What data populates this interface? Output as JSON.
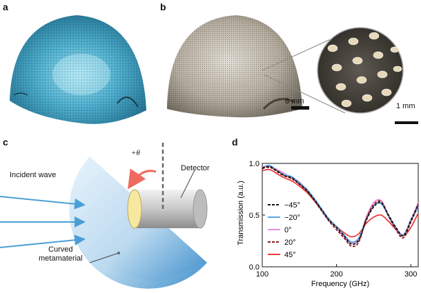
{
  "panels": {
    "a": {
      "letter": "a"
    },
    "b": {
      "letter": "b",
      "scale_main": "8 mm",
      "scale_inset": "1 mm"
    },
    "c": {
      "letter": "c",
      "theta_label": "+θ",
      "incident_label": "Incident wave",
      "detector_label": "Detector",
      "curved_label_line1": "Curved",
      "curved_label_line2": "metamaterial"
    },
    "d": {
      "letter": "d"
    }
  },
  "colors": {
    "dome_blue": "#3b8fb0",
    "wave_blue": "#4a9fd6",
    "arc_red": "#ee6a5e"
  },
  "chart_data": {
    "type": "line",
    "xlabel": "Frequency (GHz)",
    "ylabel": "Transmission (a.u.)",
    "xlim": [
      100,
      310
    ],
    "ylim": [
      0.0,
      1.0
    ],
    "xticks": [
      100,
      200,
      300
    ],
    "xtick_labels": [
      "100",
      "200",
      "300"
    ],
    "yticks": [
      0.0,
      0.5,
      1.0
    ],
    "ytick_labels": [
      "0.0",
      "0.5",
      "1.0"
    ],
    "legend_placement": "left",
    "x": [
      100,
      110,
      120,
      130,
      140,
      150,
      160,
      170,
      180,
      190,
      200,
      210,
      220,
      230,
      240,
      250,
      260,
      270,
      280,
      290,
      300,
      310
    ],
    "series": [
      {
        "name": "−45°",
        "color": "#111111",
        "dash": "dashed",
        "values": [
          0.95,
          0.97,
          0.92,
          0.88,
          0.86,
          0.8,
          0.74,
          0.65,
          0.55,
          0.45,
          0.38,
          0.3,
          0.22,
          0.26,
          0.45,
          0.58,
          0.62,
          0.5,
          0.38,
          0.3,
          0.45,
          0.6
        ]
      },
      {
        "name": "−20°",
        "color": "#5aa5e8",
        "dash": "solid",
        "values": [
          0.96,
          0.98,
          0.93,
          0.89,
          0.87,
          0.81,
          0.75,
          0.66,
          0.56,
          0.46,
          0.39,
          0.31,
          0.24,
          0.28,
          0.46,
          0.59,
          0.61,
          0.49,
          0.37,
          0.31,
          0.44,
          0.58
        ]
      },
      {
        "name": "0°",
        "color": "#e58be0",
        "dash": "solid",
        "values": [
          0.97,
          0.97,
          0.94,
          0.9,
          0.86,
          0.82,
          0.74,
          0.66,
          0.56,
          0.46,
          0.38,
          0.3,
          0.23,
          0.27,
          0.48,
          0.62,
          0.64,
          0.5,
          0.38,
          0.31,
          0.45,
          0.62
        ]
      },
      {
        "name": "20°",
        "color": "#8b1a1a",
        "dash": "dashed",
        "values": [
          0.96,
          0.96,
          0.93,
          0.88,
          0.85,
          0.8,
          0.73,
          0.64,
          0.54,
          0.44,
          0.36,
          0.28,
          0.2,
          0.24,
          0.46,
          0.6,
          0.63,
          0.49,
          0.36,
          0.28,
          0.43,
          0.61
        ]
      },
      {
        "name": "45°",
        "color": "#ee3b3b",
        "dash": "solid",
        "values": [
          0.93,
          0.94,
          0.9,
          0.86,
          0.83,
          0.78,
          0.72,
          0.64,
          0.55,
          0.46,
          0.39,
          0.33,
          0.29,
          0.32,
          0.42,
          0.48,
          0.5,
          0.44,
          0.36,
          0.3,
          0.38,
          0.52
        ]
      }
    ]
  }
}
